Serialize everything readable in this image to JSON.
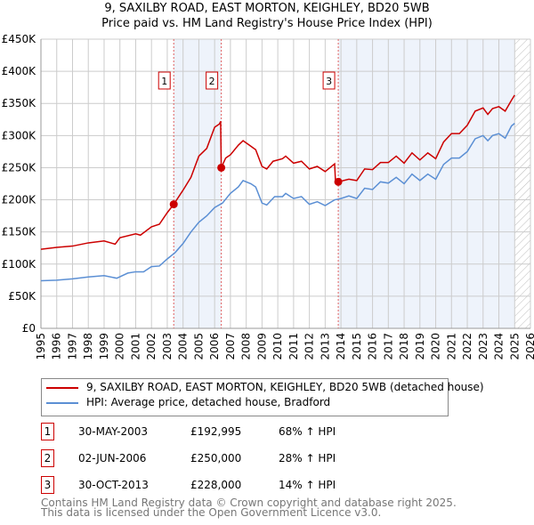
{
  "chart_data": {
    "type": "line",
    "title": "9, SAXILBY ROAD, EAST MORTON, KEIGHLEY, BD20 5WB",
    "subtitle": "Price paid vs. HM Land Registry's House Price Index (HPI)",
    "xlim": [
      1995,
      2026
    ],
    "ylim": [
      0,
      450000
    ],
    "x_ticks": [
      "1995",
      "1996",
      "1997",
      "1998",
      "1999",
      "2000",
      "2001",
      "2002",
      "2003",
      "2004",
      "2005",
      "2006",
      "2007",
      "2008",
      "2009",
      "2010",
      "2011",
      "2012",
      "2013",
      "2014",
      "2015",
      "2016",
      "2017",
      "2018",
      "2019",
      "2020",
      "2021",
      "2022",
      "2023",
      "2024",
      "2025",
      "2026"
    ],
    "y_ticks": [
      {
        "v": 0,
        "l": "£0"
      },
      {
        "v": 50000,
        "l": "£50K"
      },
      {
        "v": 100000,
        "l": "£100K"
      },
      {
        "v": 150000,
        "l": "£150K"
      },
      {
        "v": 200000,
        "l": "£200K"
      },
      {
        "v": 250000,
        "l": "£250K"
      },
      {
        "v": 300000,
        "l": "£300K"
      },
      {
        "v": 350000,
        "l": "£350K"
      },
      {
        "v": 400000,
        "l": "£400K"
      },
      {
        "v": 450000,
        "l": "£450K"
      }
    ],
    "grid": true,
    "shaded_ranges": [
      [
        2003.41,
        2006.42
      ],
      [
        2013.83,
        2025.0
      ]
    ],
    "forecast_hatch": [
      2025.0,
      2026
    ],
    "series": [
      {
        "name": "9, SAXILBY ROAD, EAST MORTON, KEIGHLEY, BD20 5WB (detached house)",
        "color": "#cc0000",
        "x": [
          1995,
          1996,
          1997,
          1998,
          1999,
          1999.7,
          2000,
          2001,
          2001.3,
          2002,
          2002.5,
          2003,
          2003.41,
          2004,
          2004.5,
          2005,
          2005.5,
          2006,
          2006.3,
          2006.38,
          2006.42,
          2006.7,
          2007,
          2007.5,
          2007.8,
          2008.2,
          2008.6,
          2009,
          2009.3,
          2009.7,
          2010.3,
          2010.5,
          2011,
          2011.5,
          2012,
          2012.5,
          2013,
          2013.6,
          2013.65,
          2013.83,
          2014.5,
          2015,
          2015.5,
          2016,
          2016.5,
          2017,
          2017.5,
          2018,
          2018.5,
          2019,
          2019.5,
          2020,
          2020.5,
          2021,
          2021.5,
          2022,
          2022.5,
          2023,
          2023.3,
          2023.6,
          2024,
          2024.4,
          2024.8,
          2025
        ],
        "y": [
          123000,
          126000,
          128000,
          133000,
          136000,
          131000,
          141000,
          147000,
          145000,
          158000,
          162000,
          180000,
          192995,
          215000,
          235000,
          268000,
          280000,
          313000,
          318000,
          322000,
          250000,
          265000,
          270000,
          285000,
          292000,
          285000,
          278000,
          252000,
          248000,
          260000,
          264000,
          268000,
          257000,
          260000,
          248000,
          252000,
          244000,
          256000,
          230000,
          228000,
          232000,
          230000,
          248000,
          247000,
          258000,
          258000,
          268000,
          257000,
          273000,
          262000,
          273000,
          264000,
          290000,
          303000,
          303000,
          316000,
          338000,
          343000,
          333000,
          342000,
          345000,
          338000,
          355000,
          363000
        ]
      },
      {
        "name": "HPI: Average price, detached house, Bradford",
        "color": "#5b8fd4",
        "x": [
          1995,
          1996,
          1997,
          1998,
          1999,
          1999.8,
          2000.5,
          2001,
          2001.5,
          2002,
          2002.5,
          2003,
          2003.5,
          2004,
          2004.5,
          2005,
          2005.5,
          2006,
          2006.5,
          2007,
          2007.5,
          2007.8,
          2008.3,
          2008.6,
          2009,
          2009.3,
          2009.8,
          2010.3,
          2010.5,
          2011,
          2011.5,
          2012,
          2012.5,
          2013,
          2013.6,
          2014,
          2014.5,
          2015,
          2015.5,
          2016,
          2016.5,
          2017,
          2017.5,
          2018,
          2018.5,
          2019,
          2019.5,
          2020,
          2020.5,
          2021,
          2021.5,
          2022,
          2022.5,
          2023,
          2023.3,
          2023.6,
          2024,
          2024.4,
          2024.8,
          2025
        ],
        "y": [
          74000,
          75000,
          77000,
          80000,
          82000,
          78000,
          86000,
          88000,
          88000,
          96000,
          97000,
          108000,
          118000,
          132000,
          150000,
          165000,
          175000,
          188000,
          195000,
          210000,
          220000,
          230000,
          225000,
          220000,
          195000,
          192000,
          205000,
          205000,
          210000,
          202000,
          205000,
          193000,
          197000,
          191000,
          200000,
          202000,
          206000,
          202000,
          218000,
          216000,
          228000,
          226000,
          235000,
          225000,
          240000,
          230000,
          240000,
          232000,
          255000,
          265000,
          265000,
          275000,
          295000,
          300000,
          292000,
          300000,
          303000,
          296000,
          315000,
          319000
        ]
      }
    ],
    "sales": [
      {
        "n": "1",
        "x": 2003.41,
        "y": 192995,
        "date": "30-MAY-2003",
        "price": "£192,995",
        "hpi": "68% ↑ HPI"
      },
      {
        "n": "2",
        "x": 2006.42,
        "y": 250000,
        "date": "02-JUN-2006",
        "price": "£250,000",
        "hpi": "28% ↑ HPI"
      },
      {
        "n": "3",
        "x": 2013.83,
        "y": 228000,
        "date": "30-OCT-2013",
        "price": "£228,000",
        "hpi": "14% ↑ HPI"
      }
    ]
  },
  "footer": {
    "line1": "Contains HM Land Registry data © Crown copyright and database right 2025.",
    "line2": "This data is licensed under the Open Government Licence v3.0."
  }
}
